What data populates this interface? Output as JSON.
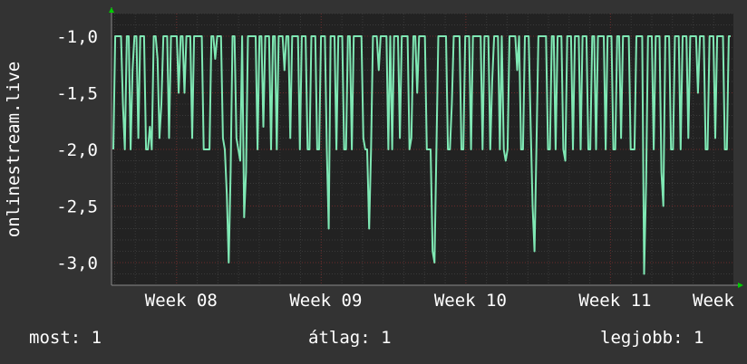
{
  "chart_data": {
    "type": "line",
    "title": "",
    "ylabel": "onlinestream.live",
    "xlabel": "",
    "ylim": [
      -3.2,
      -0.8
    ],
    "y_ticks": [
      -1.0,
      -1.5,
      -2.0,
      -2.5,
      -3.0
    ],
    "y_tick_labels": [
      "-1,0",
      "-1,5",
      "-2,0",
      "-2,5",
      "-3,0"
    ],
    "x_ticks": [
      {
        "label": "Week 08",
        "x": 8
      },
      {
        "label": "Week 09",
        "x": 9
      },
      {
        "label": "Week 10",
        "x": 10
      },
      {
        "label": "Week 11",
        "x": 11
      },
      {
        "label": "Week",
        "x": 12
      }
    ],
    "xlim": [
      7.55,
      11.85
    ],
    "grid": true,
    "line_color": "#7fe8b4",
    "series": [
      {
        "values": [
          -2.0,
          -1.0,
          -1.0,
          -1.0,
          -1.0,
          -1.6,
          -2.0,
          -1.0,
          -1.0,
          -2.0,
          -1.3,
          -1.0,
          -1.0,
          -1.9,
          -1.0,
          -1.0,
          -1.0,
          -2.0,
          -2.0,
          -1.8,
          -2.0,
          -1.0,
          -1.0,
          -1.2,
          -1.9,
          -1.6,
          -1.0,
          -1.0,
          -1.0,
          -1.9,
          -1.0,
          -1.0,
          -1.0,
          -1.0,
          -1.5,
          -1.0,
          -1.0,
          -1.5,
          -1.0,
          -1.0,
          -1.0,
          -1.9,
          -1.0,
          -1.0,
          -1.0,
          -1.0,
          -1.0,
          -2.0,
          -2.0,
          -2.0,
          -2.0,
          -1.0,
          -1.0,
          -1.2,
          -1.0,
          -1.0,
          -1.0,
          -1.9,
          -2.0,
          -2.4,
          -3.0,
          -2.2,
          -1.0,
          -1.0,
          -1.9,
          -2.0,
          -2.1,
          -1.0,
          -2.6,
          -2.2,
          -1.0,
          -1.0,
          -1.0,
          -1.0,
          -1.0,
          -2.0,
          -1.0,
          -1.0,
          -1.8,
          -1.0,
          -1.0,
          -1.0,
          -2.0,
          -1.0,
          -1.0,
          -2.0,
          -1.0,
          -1.0,
          -1.0,
          -1.3,
          -1.0,
          -1.0,
          -1.9,
          -1.0,
          -1.0,
          -1.0,
          -1.0,
          -2.0,
          -1.0,
          -1.0,
          -1.0,
          -2.0,
          -2.0,
          -1.0,
          -1.0,
          -1.0,
          -2.0,
          -2.0,
          -1.0,
          -1.0,
          -1.0,
          -2.0,
          -2.7,
          -1.0,
          -1.0,
          -1.0,
          -2.0,
          -1.0,
          -1.0,
          -1.0,
          -2.0,
          -2.0,
          -1.0,
          -1.0,
          -2.0,
          -1.0,
          -1.0,
          -1.0,
          -1.0,
          -1.0,
          -1.9,
          -2.0,
          -2.0,
          -2.7,
          -2.0,
          -1.0,
          -1.0,
          -1.0,
          -1.3,
          -1.0,
          -1.0,
          -1.0,
          -1.0,
          -2.0,
          -1.0,
          -2.0,
          -1.0,
          -1.0,
          -1.0,
          -1.9,
          -1.0,
          -1.0,
          -1.0,
          -1.0,
          -2.0,
          -1.9,
          -1.0,
          -1.0,
          -1.5,
          -1.0,
          -1.0,
          -1.0,
          -1.0,
          -2.0,
          -2.0,
          -2.0,
          -2.9,
          -3.0,
          -2.0,
          -1.0,
          -1.0,
          -1.0,
          -1.0,
          -1.0,
          -2.0,
          -2.0,
          -1.6,
          -1.0,
          -1.0,
          -1.0,
          -1.0,
          -2.0,
          -2.0,
          -1.0,
          -1.0,
          -1.0,
          -2.0,
          -1.0,
          -1.0,
          -1.0,
          -1.0,
          -1.0,
          -2.0,
          -1.0,
          -1.0,
          -1.0,
          -2.0,
          -1.4,
          -1.0,
          -1.0,
          -1.0,
          -2.0,
          -1.0,
          -2.0,
          -2.1,
          -2.0,
          -1.0,
          -1.0,
          -1.0,
          -1.0,
          -1.3,
          -1.0,
          -2.0,
          -2.0,
          -1.0,
          -1.0,
          -1.0,
          -1.8,
          -2.5,
          -2.9,
          -2.0,
          -1.0,
          -1.0,
          -1.0,
          -1.0,
          -1.0,
          -2.0,
          -2.0,
          -1.0,
          -1.0,
          -2.0,
          -1.0,
          -1.0,
          -1.0,
          -2.0,
          -2.1,
          -1.0,
          -1.0,
          -1.0,
          -2.0,
          -1.0,
          -1.0,
          -1.0,
          -2.0,
          -1.0,
          -1.0,
          -1.0,
          -2.0,
          -2.0,
          -1.0,
          -1.0,
          -2.0,
          -1.0,
          -1.0,
          -1.0,
          -1.0,
          -2.0,
          -1.0,
          -1.0,
          -1.0,
          -2.0,
          -2.0,
          -1.0,
          -1.0,
          -1.9,
          -1.0,
          -1.0,
          -1.0,
          -1.0,
          -2.0,
          -2.0,
          -2.0,
          -1.0,
          -1.0,
          -1.0,
          -1.0,
          -3.1,
          -2.3,
          -1.0,
          -1.0,
          -1.0,
          -2.0,
          -1.0,
          -1.0,
          -1.0,
          -2.2,
          -2.5,
          -1.0,
          -1.0,
          -1.0,
          -2.0,
          -2.0,
          -1.0,
          -1.0,
          -1.0,
          -2.0,
          -1.0,
          -1.0,
          -1.0,
          -1.9,
          -1.0,
          -1.0,
          -1.0,
          -1.0,
          -1.5,
          -1.0,
          -1.0,
          -1.0,
          -2.0,
          -2.0,
          -1.0,
          -1.0,
          -1.0,
          -1.9,
          -1.0,
          -1.0,
          -1.0,
          -1.0,
          -2.0,
          -2.0,
          -1.0,
          -1.0
        ]
      }
    ]
  },
  "legend": {
    "now": "most: 1",
    "avg": "átlag: 1",
    "max": "legjobb: 1"
  }
}
